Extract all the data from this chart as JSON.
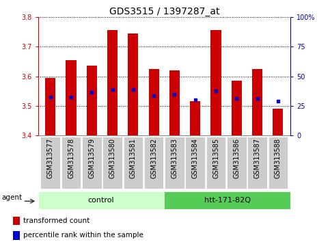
{
  "title": "GDS3515 / 1397287_at",
  "samples": [
    "GSM313577",
    "GSM313578",
    "GSM313579",
    "GSM313580",
    "GSM313581",
    "GSM313582",
    "GSM313583",
    "GSM313584",
    "GSM313585",
    "GSM313586",
    "GSM313587",
    "GSM313588"
  ],
  "bar_tops": [
    3.595,
    3.655,
    3.635,
    3.755,
    3.745,
    3.625,
    3.62,
    3.515,
    3.755,
    3.585,
    3.625,
    3.49
  ],
  "bar_base": 3.4,
  "percentile_values": [
    3.53,
    3.53,
    3.545,
    3.555,
    3.555,
    3.535,
    3.54,
    3.52,
    3.55,
    3.525,
    3.525,
    3.515
  ],
  "ylim_left": [
    3.4,
    3.8
  ],
  "ylim_right": [
    0,
    100
  ],
  "yticks_left": [
    3.4,
    3.5,
    3.6,
    3.7,
    3.8
  ],
  "yticks_right": [
    0,
    25,
    50,
    75,
    100
  ],
  "ytick_labels_right": [
    "0",
    "25",
    "50",
    "75",
    "100%"
  ],
  "bar_color": "#cc0000",
  "percentile_color": "#0000cc",
  "grid_color": "#000000",
  "left_tick_color": "#cc0000",
  "right_tick_color": "#0000bb",
  "group1_label": "control",
  "group2_label": "htt-171-82Q",
  "group1_count": 6,
  "group2_count": 6,
  "group1_color": "#ccffcc",
  "group2_color": "#55cc55",
  "agent_label": "agent",
  "legend_entry1": "transformed count",
  "legend_entry2": "percentile rank within the sample",
  "background_color": "#ffffff",
  "xticklabel_bg": "#cccccc",
  "bar_width": 0.5,
  "title_fontsize": 10,
  "tick_fontsize": 7,
  "label_fontsize": 7.5,
  "group_label_fontsize": 8
}
